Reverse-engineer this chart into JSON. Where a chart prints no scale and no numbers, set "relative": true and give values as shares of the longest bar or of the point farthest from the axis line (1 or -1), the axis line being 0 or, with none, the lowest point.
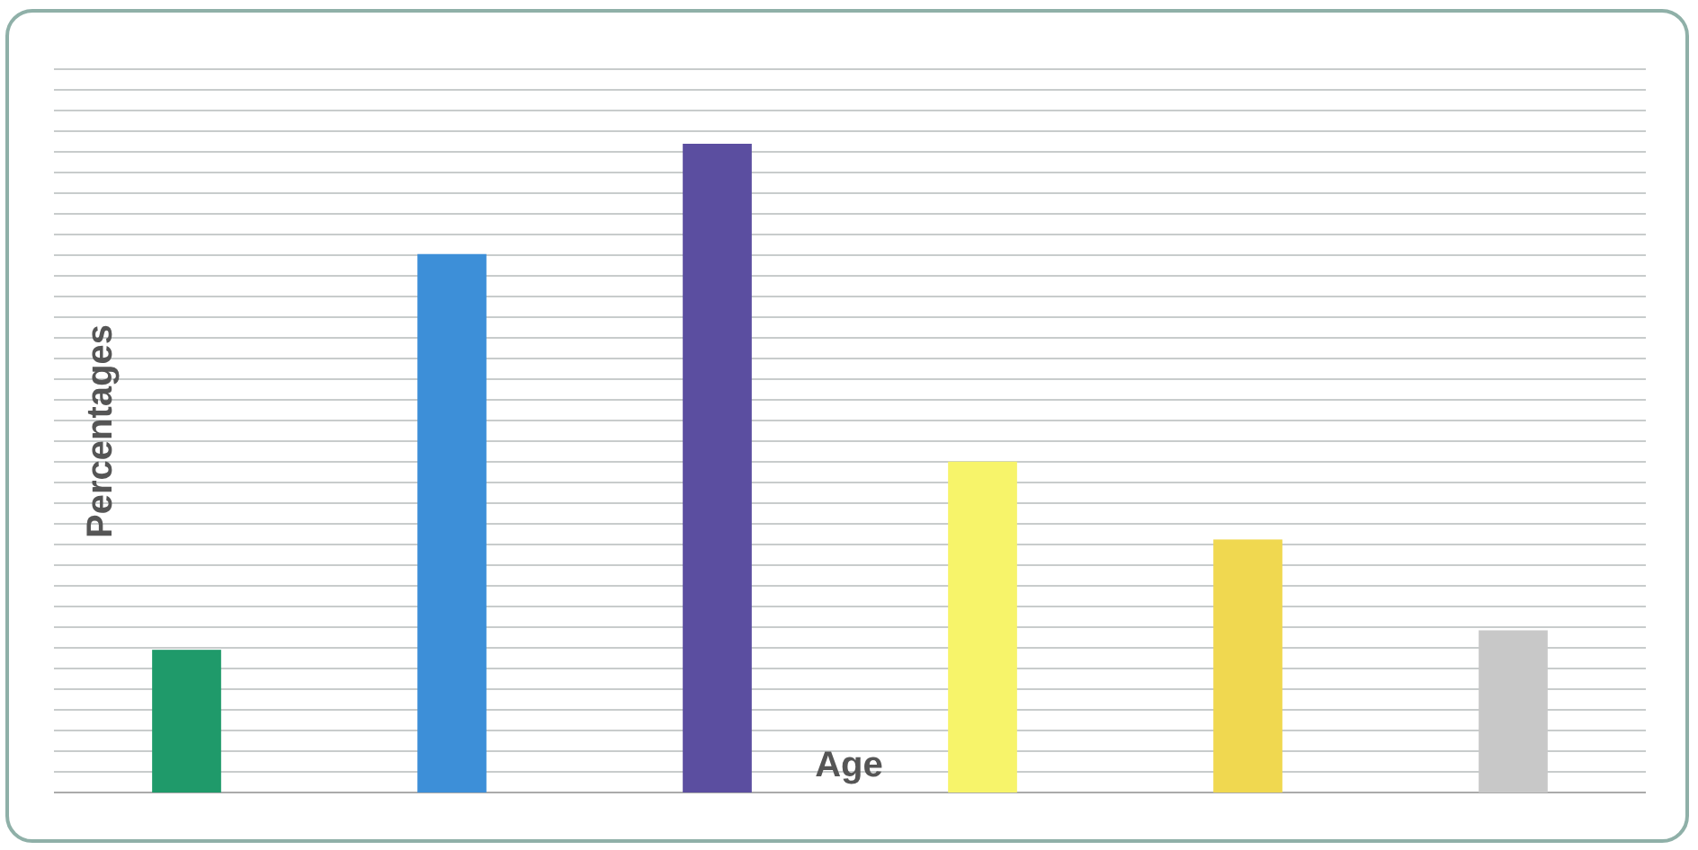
{
  "chart_data": {
    "type": "bar",
    "xlabel": "Age",
    "ylabel": "Percentages",
    "relative": true,
    "grid": true,
    "categories": [
      null,
      null,
      null,
      null,
      null,
      null
    ],
    "values": [
      0.22,
      0.83,
      1,
      0.51,
      0.39,
      0.25
    ],
    "colors": [
      "#1f9a6a",
      "#3d8fd8",
      "#5b4ea0",
      "#f7f46a",
      "#f0d850",
      "#c8c8c8"
    ]
  }
}
